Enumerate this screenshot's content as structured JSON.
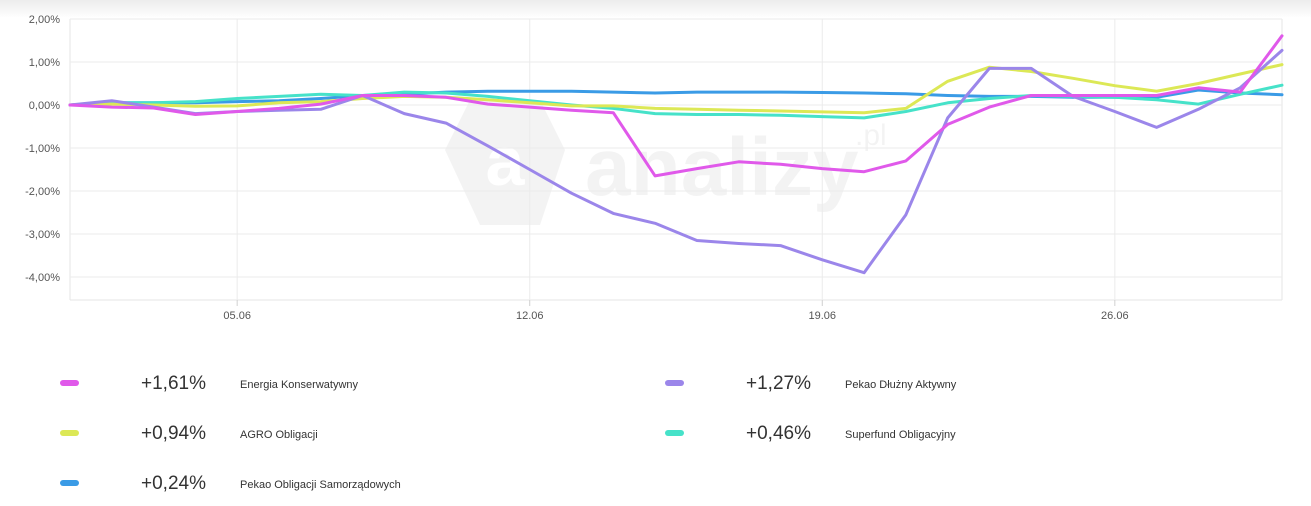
{
  "chart_data": {
    "type": "line",
    "title": "",
    "xlabel": "",
    "ylabel": "",
    "ylim": [
      -4.5,
      2.0
    ],
    "x_range": [
      "01.06",
      "30.06"
    ],
    "x_ticks": [
      "05.06",
      "12.06",
      "19.06",
      "26.06"
    ],
    "y_ticks": [
      "2,00%",
      "1,00%",
      "0,00%",
      "-1,00%",
      "-2,00%",
      "-3,00%",
      "-4,00%"
    ],
    "grid": true,
    "watermark": "analizy.pl",
    "x": [
      "01.06",
      "02.06",
      "03.06",
      "04.06",
      "05.06",
      "06.06",
      "07.06",
      "08.06",
      "09.06",
      "10.06",
      "11.06",
      "12.06",
      "13.06",
      "14.06",
      "15.06",
      "16.06",
      "17.06",
      "18.06",
      "19.06",
      "20.06",
      "21.06",
      "22.06",
      "23.06",
      "24.06",
      "25.06",
      "26.06",
      "27.06",
      "28.06",
      "29.06",
      "30.06"
    ],
    "series": [
      {
        "name": "Energia Konserwatywny",
        "color": "#e059ea",
        "values": [
          0.0,
          -0.05,
          -0.07,
          -0.22,
          -0.15,
          -0.08,
          0.02,
          0.22,
          0.22,
          0.18,
          0.02,
          -0.05,
          -0.12,
          -0.18,
          -1.65,
          -1.48,
          -1.32,
          -1.38,
          -1.48,
          -1.55,
          -1.3,
          -0.45,
          -0.05,
          0.22,
          0.22,
          0.22,
          0.22,
          0.4,
          0.3,
          1.61
        ]
      },
      {
        "name": "Pekao Dłużny Aktywny",
        "color": "#9b86ea",
        "values": [
          0.0,
          0.1,
          -0.05,
          -0.2,
          -0.15,
          -0.12,
          -0.1,
          0.22,
          -0.2,
          -0.42,
          -0.95,
          -1.5,
          -2.05,
          -2.52,
          -2.75,
          -3.15,
          -3.22,
          -3.27,
          -3.6,
          -3.9,
          -2.55,
          -0.3,
          0.85,
          0.85,
          0.2,
          -0.15,
          -0.52,
          -0.1,
          0.4,
          1.27
        ]
      },
      {
        "name": "AGRO Obligacji",
        "color": "#dce856",
        "values": [
          0.0,
          0.02,
          0.0,
          -0.03,
          -0.02,
          0.05,
          0.08,
          0.15,
          0.2,
          0.18,
          0.12,
          0.05,
          -0.02,
          -0.02,
          -0.08,
          -0.1,
          -0.12,
          -0.14,
          -0.16,
          -0.18,
          -0.08,
          0.55,
          0.88,
          0.78,
          0.62,
          0.45,
          0.32,
          0.5,
          0.72,
          0.94
        ]
      },
      {
        "name": "Superfund Obligacyjny",
        "color": "#46e2c9",
        "values": [
          0.0,
          0.05,
          0.05,
          0.08,
          0.15,
          0.2,
          0.25,
          0.22,
          0.3,
          0.28,
          0.2,
          0.1,
          0.0,
          -0.08,
          -0.2,
          -0.22,
          -0.22,
          -0.24,
          -0.27,
          -0.3,
          -0.15,
          0.05,
          0.15,
          0.22,
          0.2,
          0.18,
          0.12,
          0.02,
          0.25,
          0.46
        ]
      },
      {
        "name": "Pekao Obligacji Samorządowych",
        "color": "#3a9be6",
        "values": [
          0.0,
          0.05,
          0.05,
          0.05,
          0.08,
          0.1,
          0.15,
          0.22,
          0.25,
          0.3,
          0.32,
          0.32,
          0.32,
          0.3,
          0.28,
          0.3,
          0.3,
          0.3,
          0.29,
          0.28,
          0.26,
          0.22,
          0.2,
          0.2,
          0.18,
          0.18,
          0.18,
          0.35,
          0.28,
          0.24
        ]
      }
    ]
  },
  "legend": [
    {
      "value": "+1,61%",
      "name": "Energia Konserwatywny",
      "color": "#e059ea"
    },
    {
      "value": "+1,27%",
      "name": "Pekao Dłużny Aktywny",
      "color": "#9b86ea"
    },
    {
      "value": "+0,94%",
      "name": "AGRO Obligacji",
      "color": "#dce856"
    },
    {
      "value": "+0,46%",
      "name": "Superfund Obligacyjny",
      "color": "#46e2c9"
    },
    {
      "value": "+0,24%",
      "name": "Pekao Obligacji Samorządowych",
      "color": "#3a9be6"
    }
  ]
}
